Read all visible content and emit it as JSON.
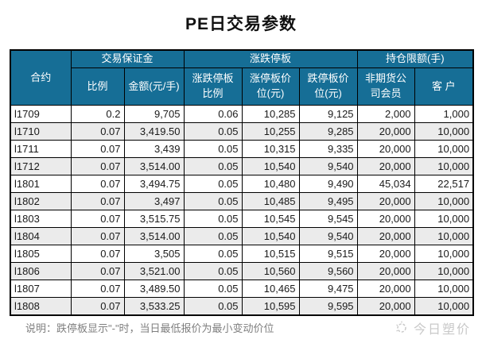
{
  "title": "PE日交易参数",
  "table": {
    "header": {
      "contract": "合约",
      "groups": [
        {
          "label": "交易保证金",
          "children": [
            "比例",
            "金额(元/手)"
          ]
        },
        {
          "label": "涨跌停板",
          "children": [
            "涨跌停板比例",
            "涨停板价位(元)",
            "跌停板价位(元)"
          ]
        },
        {
          "label": "持仓限额(手)",
          "children": [
            "非期货公司会员",
            "客 户"
          ]
        }
      ]
    },
    "rows": [
      {
        "contract": "l1709",
        "values": [
          "0.2",
          "9,705",
          "0.06",
          "10,285",
          "9,125",
          "2,000",
          "1,000"
        ]
      },
      {
        "contract": "l1710",
        "values": [
          "0.07",
          "3,419.50",
          "0.05",
          "10,255",
          "9,285",
          "20,000",
          "10,000"
        ]
      },
      {
        "contract": "l1711",
        "values": [
          "0.07",
          "3,439",
          "0.05",
          "10,315",
          "9,335",
          "20,000",
          "10,000"
        ]
      },
      {
        "contract": "l1712",
        "values": [
          "0.07",
          "3,514.00",
          "0.05",
          "10,540",
          "9,540",
          "20,000",
          "10,000"
        ]
      },
      {
        "contract": "l1801",
        "values": [
          "0.07",
          "3,494.75",
          "0.05",
          "10,480",
          "9,490",
          "45,034",
          "22,517"
        ]
      },
      {
        "contract": "l1802",
        "values": [
          "0.07",
          "3,497",
          "0.05",
          "10,485",
          "9,495",
          "20,000",
          "10,000"
        ]
      },
      {
        "contract": "l1803",
        "values": [
          "0.07",
          "3,515.75",
          "0.05",
          "10,545",
          "9,545",
          "20,000",
          "10,000"
        ]
      },
      {
        "contract": "l1804",
        "values": [
          "0.07",
          "3,514.00",
          "0.05",
          "10,540",
          "9,540",
          "20,000",
          "10,000"
        ]
      },
      {
        "contract": "l1805",
        "values": [
          "0.07",
          "3,505",
          "0.05",
          "10,515",
          "9,515",
          "20,000",
          "10,000"
        ]
      },
      {
        "contract": "l1806",
        "values": [
          "0.07",
          "3,521.00",
          "0.05",
          "10,560",
          "9,560",
          "20,000",
          "10,000"
        ]
      },
      {
        "contract": "l1807",
        "values": [
          "0.07",
          "3,489.50",
          "0.05",
          "10,465",
          "9,475",
          "20,000",
          "10,000"
        ]
      },
      {
        "contract": "l1808",
        "values": [
          "0.07",
          "3,533.25",
          "0.05",
          "10,595",
          "9,595",
          "20,000",
          "10,000"
        ]
      }
    ]
  },
  "note": "说明：跌停板显示\"-\"时，当日最低报价为最小变动价位",
  "watermark": {
    "icon": "sun-logo-icon",
    "text": "今日塑价"
  },
  "colors": {
    "header_bg": "#166E96",
    "header_text": "#ffffff",
    "stripe": "#ebebeb",
    "border": "#000000",
    "note_text": "#7f7f7f",
    "watermark_text": "#c9c9c9"
  }
}
